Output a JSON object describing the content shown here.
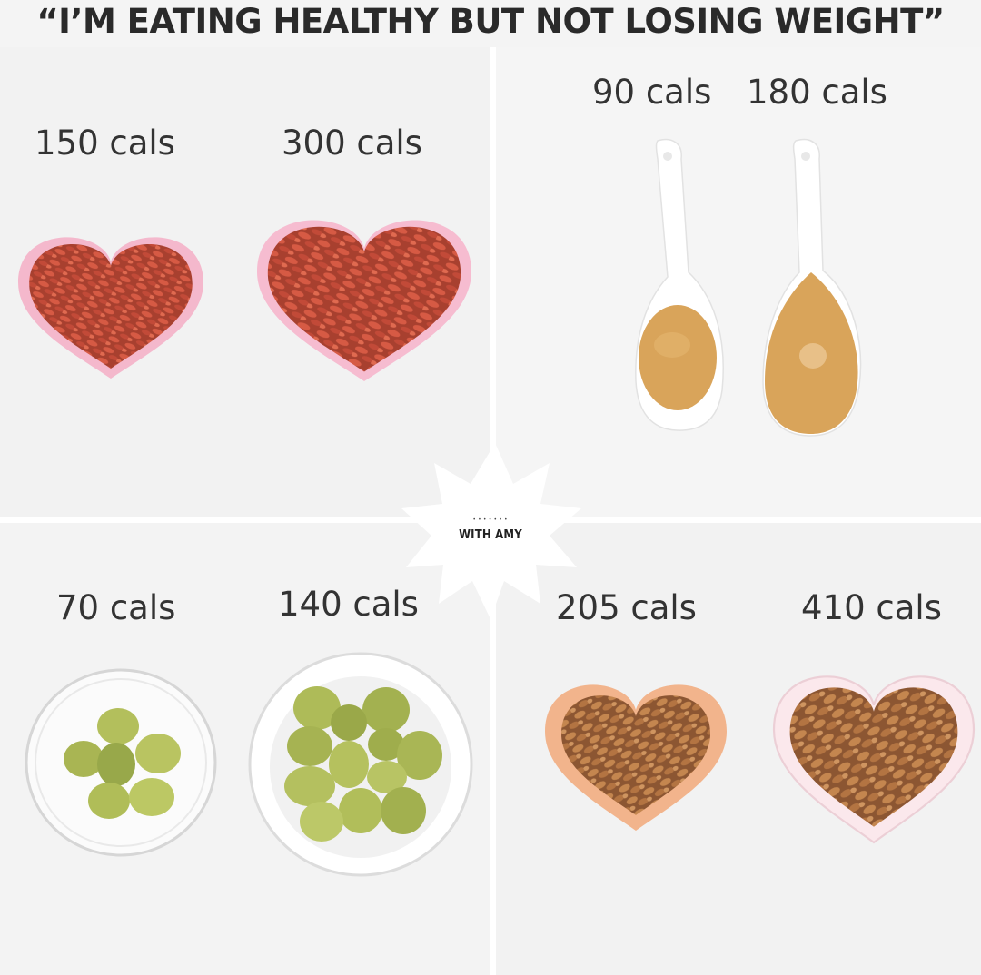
{
  "title": "“I’M EATING HEALTHY BUT NOT LOSING WEIGHT”",
  "panels": {
    "goji": {
      "small": "150 cals",
      "large": "300 cals"
    },
    "peanut_butter": {
      "small": "90 cals",
      "large": "180 cals"
    },
    "olives": {
      "small": "70 cals",
      "large": "140 cals"
    },
    "almonds": {
      "small": "205 cals",
      "large": "410 cals"
    }
  },
  "badge": {
    "text": "WITH AMY"
  },
  "colors": {
    "goji": "#c8503c",
    "heart_pink": "#f4b8cc",
    "peanut_butter": "#d9a45a",
    "spoon": "#ffffff",
    "olive": "#a6b550",
    "almond": "#b8784a",
    "heart_peach": "#f2b48c"
  }
}
